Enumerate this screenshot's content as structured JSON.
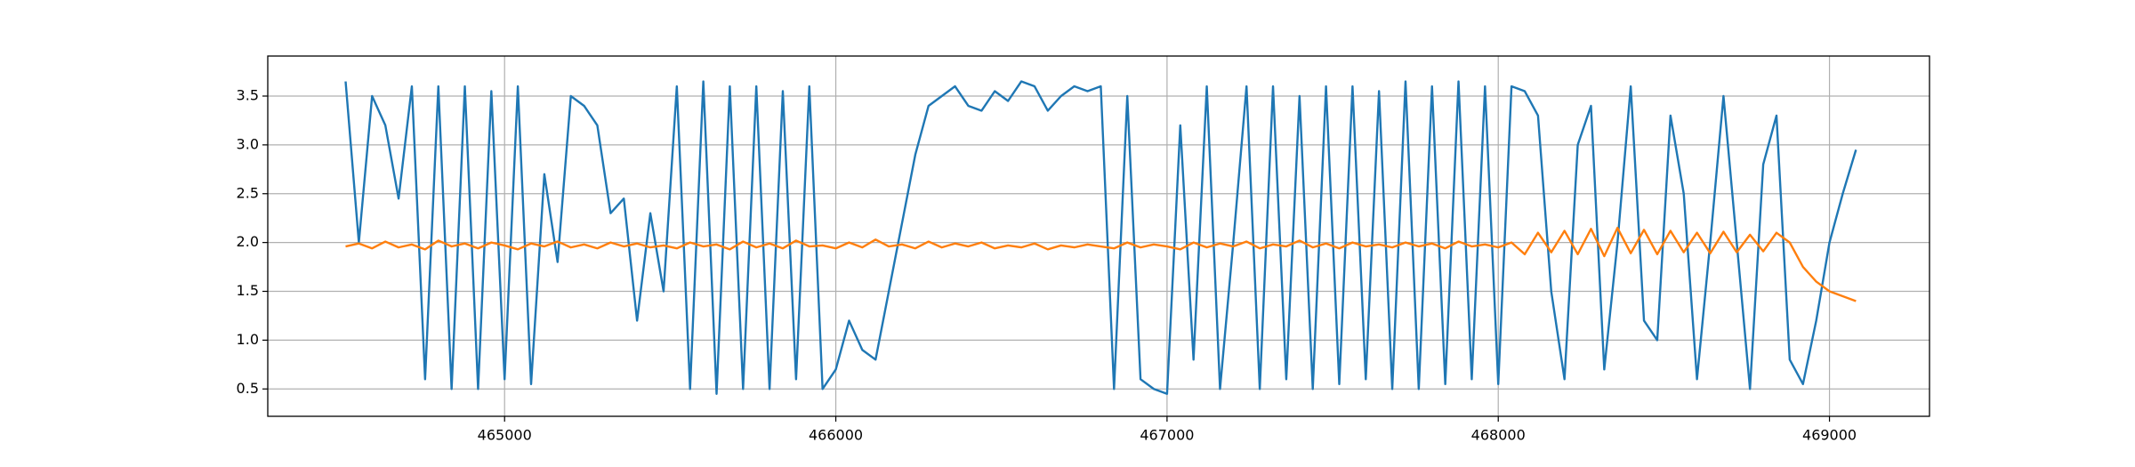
{
  "chart_data": {
    "type": "line",
    "x": [
      464520,
      464560,
      464600,
      464640,
      464680,
      464720,
      464760,
      464800,
      464840,
      464880,
      464920,
      464960,
      465000,
      465040,
      465080,
      465120,
      465160,
      465200,
      465240,
      465280,
      465320,
      465360,
      465400,
      465440,
      465480,
      465520,
      465560,
      465600,
      465640,
      465680,
      465720,
      465760,
      465800,
      465840,
      465880,
      465920,
      465960,
      466000,
      466040,
      466080,
      466120,
      466160,
      466200,
      466240,
      466280,
      466320,
      466360,
      466400,
      466440,
      466480,
      466520,
      466560,
      466600,
      466640,
      466680,
      466720,
      466760,
      466800,
      466840,
      466880,
      466920,
      466960,
      467000,
      467040,
      467080,
      467120,
      467160,
      467200,
      467240,
      467280,
      467320,
      467360,
      467400,
      467440,
      467480,
      467520,
      467560,
      467600,
      467640,
      467680,
      467720,
      467760,
      467800,
      467840,
      467880,
      467920,
      467960,
      468000,
      468040,
      468080,
      468120,
      468160,
      468200,
      468240,
      468280,
      468320,
      468360,
      468400,
      468440,
      468480,
      468520,
      468560,
      468600,
      468640,
      468680,
      468720,
      468760,
      468800,
      468840,
      468880,
      468920,
      468960,
      469000,
      469040,
      469080
    ],
    "series": [
      {
        "color": "#1f77b4",
        "values": [
          3.65,
          2.0,
          3.5,
          3.2,
          2.45,
          3.6,
          0.6,
          3.6,
          0.5,
          3.6,
          0.5,
          3.55,
          0.6,
          3.6,
          0.55,
          2.7,
          1.8,
          3.5,
          3.4,
          3.2,
          2.3,
          2.45,
          1.2,
          2.3,
          1.5,
          3.6,
          0.5,
          3.65,
          0.45,
          3.6,
          0.5,
          3.6,
          0.5,
          3.55,
          0.6,
          3.6,
          0.5,
          0.7,
          1.2,
          0.9,
          0.8,
          1.5,
          2.2,
          2.9,
          3.4,
          3.5,
          3.6,
          3.4,
          3.35,
          3.55,
          3.45,
          3.65,
          3.6,
          3.35,
          3.5,
          3.6,
          3.55,
          3.6,
          0.5,
          3.5,
          0.6,
          0.5,
          0.45,
          3.2,
          0.8,
          3.6,
          0.5,
          2.0,
          3.6,
          0.5,
          3.6,
          0.6,
          3.5,
          0.5,
          3.6,
          0.55,
          3.6,
          0.6,
          3.55,
          0.5,
          3.65,
          0.5,
          3.6,
          0.55,
          3.65,
          0.6,
          3.6,
          0.55,
          3.6,
          3.55,
          3.3,
          1.5,
          0.6,
          3.0,
          3.4,
          0.7,
          2.0,
          3.6,
          1.2,
          1.0,
          3.3,
          2.5,
          0.6,
          2.0,
          3.5,
          2.0,
          0.5,
          2.8,
          3.3,
          0.8,
          0.55,
          1.2,
          2.0,
          2.5,
          2.95
        ]
      },
      {
        "color": "#ff7f0e",
        "values": [
          1.96,
          1.99,
          1.94,
          2.01,
          1.95,
          1.98,
          1.93,
          2.02,
          1.96,
          1.99,
          1.94,
          2.0,
          1.97,
          1.93,
          1.99,
          1.96,
          2.01,
          1.95,
          1.98,
          1.94,
          2.0,
          1.96,
          1.99,
          1.95,
          1.97,
          1.94,
          2.0,
          1.96,
          1.98,
          1.93,
          2.01,
          1.95,
          1.99,
          1.94,
          2.02,
          1.96,
          1.97,
          1.94,
          2.0,
          1.95,
          2.03,
          1.96,
          1.98,
          1.94,
          2.01,
          1.95,
          1.99,
          1.96,
          2.0,
          1.94,
          1.97,
          1.95,
          1.99,
          1.93,
          1.97,
          1.95,
          1.98,
          1.96,
          1.94,
          2.0,
          1.95,
          1.98,
          1.96,
          1.93,
          2.0,
          1.95,
          1.99,
          1.96,
          2.01,
          1.94,
          1.98,
          1.96,
          2.02,
          1.95,
          1.99,
          1.94,
          2.0,
          1.96,
          1.98,
          1.95,
          2.0,
          1.96,
          1.99,
          1.94,
          2.01,
          1.96,
          1.98,
          1.95,
          2.0,
          1.88,
          2.1,
          1.9,
          2.12,
          1.88,
          2.14,
          1.86,
          2.15,
          1.89,
          2.13,
          1.88,
          2.12,
          1.9,
          2.1,
          1.89,
          2.11,
          1.9,
          2.08,
          1.91,
          2.1,
          2.0,
          1.75,
          1.6,
          1.5,
          1.45,
          1.4
        ]
      }
    ],
    "xlim": [
      464285,
      469302
    ],
    "xticks": [
      465000,
      466000,
      467000,
      468000,
      469000
    ],
    "ylim": [
      0.22,
      3.91
    ],
    "yticks": [
      0.5,
      {
        "value": 1,
        "label": "1.0"
      },
      1.5,
      {
        "value": 2,
        "label": "2.0"
      },
      2.5,
      {
        "value": 3,
        "label": "3.0"
      },
      3.5
    ],
    "grid": true
  }
}
